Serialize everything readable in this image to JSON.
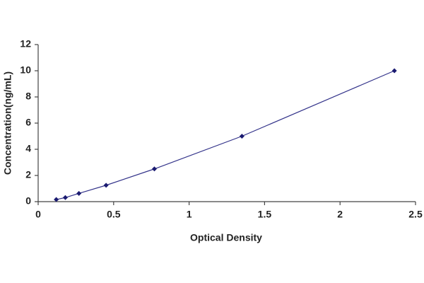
{
  "chart_data": {
    "type": "line",
    "xlabel": "Optical Density",
    "ylabel": "Concentration(ng/mL)",
    "x": [
      0.12,
      0.18,
      0.27,
      0.45,
      0.77,
      1.35,
      2.36
    ],
    "values": [
      0.16,
      0.31,
      0.63,
      1.25,
      2.5,
      5,
      10
    ],
    "color": "#33338a",
    "marker_color": "#1a1a70",
    "xlim": [
      0,
      2.5
    ],
    "xticks": [
      0,
      0.5,
      1,
      1.5,
      2,
      2.5
    ],
    "ylim": [
      0,
      12
    ],
    "yticks": [
      0,
      2,
      4,
      6,
      8,
      10,
      12
    ],
    "grid": false
  }
}
